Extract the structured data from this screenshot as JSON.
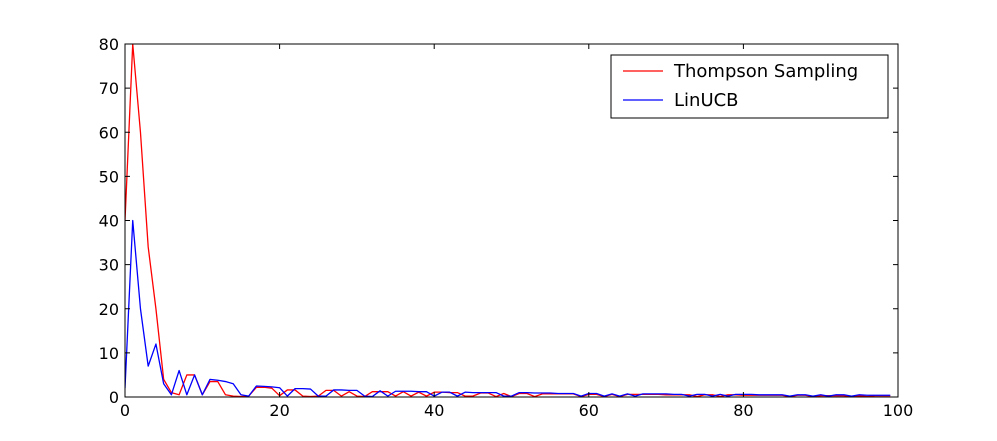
{
  "chart_data": {
    "type": "line",
    "title": "",
    "xlabel": "",
    "ylabel": "",
    "xlim": [
      0,
      100
    ],
    "ylim": [
      0,
      80
    ],
    "xticks": [
      0,
      20,
      40,
      60,
      80,
      100
    ],
    "yticks": [
      0,
      10,
      20,
      30,
      40,
      50,
      60,
      70,
      80
    ],
    "xtick_labels": [
      "0",
      "20",
      "40",
      "60",
      "80",
      "100"
    ],
    "ytick_labels": [
      "0",
      "10",
      "20",
      "30",
      "40",
      "50",
      "60",
      "70",
      "80"
    ],
    "grid": false,
    "legend": "top-right",
    "x": [
      0,
      1,
      2,
      3,
      4,
      5,
      6,
      7,
      8,
      9,
      10,
      11,
      12,
      13,
      14,
      15,
      16,
      17,
      18,
      19,
      20,
      21,
      22,
      23,
      24,
      25,
      26,
      27,
      28,
      29,
      30,
      31,
      32,
      33,
      34,
      35,
      36,
      37,
      38,
      39,
      40,
      41,
      42,
      43,
      44,
      45,
      46,
      47,
      48,
      49,
      50,
      51,
      52,
      53,
      54,
      55,
      56,
      57,
      58,
      59,
      60,
      61,
      62,
      63,
      64,
      65,
      66,
      67,
      68,
      69,
      70,
      71,
      72,
      73,
      74,
      75,
      76,
      77,
      78,
      79,
      80,
      81,
      82,
      83,
      84,
      85,
      86,
      87,
      88,
      89,
      90,
      91,
      92,
      93,
      94,
      95,
      96,
      97,
      98,
      99
    ],
    "series": [
      {
        "name": "Thompson Sampling",
        "color": "#ff0000",
        "values": [
          40,
          80,
          60,
          34,
          20,
          4,
          1,
          0.5,
          5,
          5,
          0.5,
          3.5,
          3.5,
          0.5,
          0.2,
          0.1,
          0.2,
          2.2,
          2.2,
          2,
          0.3,
          1.6,
          1.6,
          0.2,
          0.1,
          0.2,
          1.5,
          1.5,
          0.2,
          1.2,
          0.2,
          0.1,
          1.2,
          1.2,
          1.2,
          0.2,
          1.2,
          0.2,
          1.1,
          0.2,
          1.1,
          1.1,
          1,
          1,
          0.2,
          0.2,
          0.9,
          0.9,
          0.1,
          0.8,
          0.1,
          0.8,
          0.8,
          0.1,
          0.7,
          0.7,
          0.7,
          0.7,
          0.7,
          0.1,
          0.6,
          0.6,
          0.1,
          0.6,
          0.1,
          0.6,
          0.6,
          0.6,
          0.6,
          0.6,
          0.5,
          0.5,
          0.5,
          0.5,
          0.1,
          0.5,
          0.5,
          0.1,
          0.5,
          0.5,
          0.4,
          0.4,
          0.4,
          0.4,
          0.4,
          0.4,
          0.1,
          0.4,
          0.4,
          0.1,
          0.3,
          0.3,
          0.3,
          0.3,
          0.1,
          0.3,
          0.1,
          0.3,
          0.3,
          0.3
        ]
      },
      {
        "name": "LinUCB",
        "color": "#0000ff",
        "values": [
          2,
          40,
          20,
          7,
          12,
          3,
          0.5,
          6,
          0.5,
          5,
          0.5,
          4,
          3.8,
          3.5,
          3,
          0.5,
          0.2,
          2.5,
          2.4,
          2.3,
          2.1,
          0.2,
          1.9,
          1.9,
          1.8,
          0.2,
          0.2,
          1.6,
          1.6,
          1.5,
          1.5,
          0.2,
          0.1,
          1.4,
          0.2,
          1.3,
          1.3,
          1.3,
          1.2,
          1.2,
          0.2,
          1.1,
          1.1,
          0.2,
          1.1,
          1,
          1,
          1,
          1,
          0.2,
          0.2,
          1,
          1,
          0.9,
          0.9,
          0.9,
          0.8,
          0.8,
          0.8,
          0.2,
          0.8,
          0.8,
          0.2,
          0.7,
          0.2,
          0.7,
          0.2,
          0.7,
          0.7,
          0.7,
          0.7,
          0.6,
          0.6,
          0.2,
          0.6,
          0.6,
          0.2,
          0.6,
          0.2,
          0.6,
          0.6,
          0.6,
          0.5,
          0.5,
          0.5,
          0.5,
          0.2,
          0.5,
          0.5,
          0.2,
          0.5,
          0.2,
          0.5,
          0.5,
          0.2,
          0.5,
          0.4,
          0.4,
          0.4,
          0.4
        ]
      }
    ]
  }
}
